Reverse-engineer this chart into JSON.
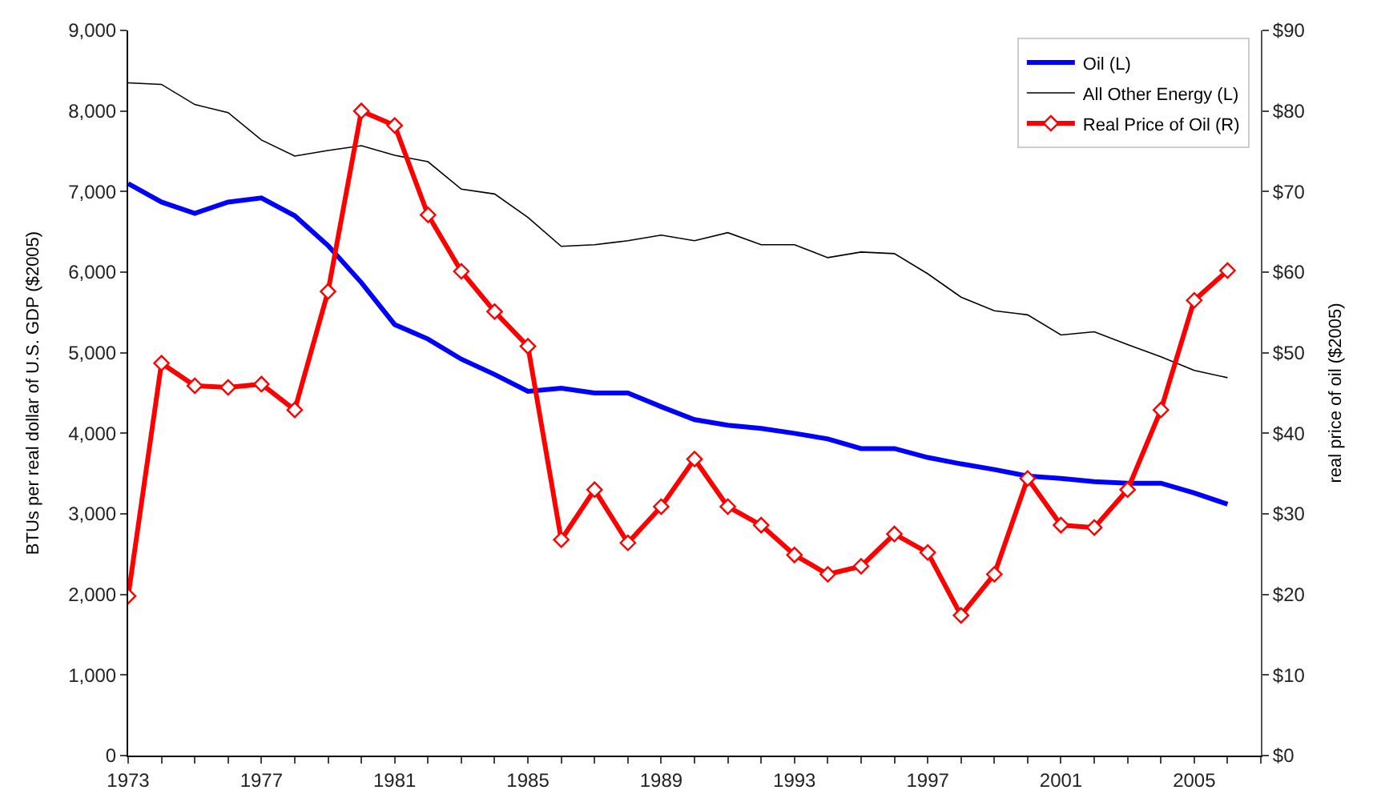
{
  "chart_data": {
    "type": "line",
    "x": [
      1973,
      1974,
      1975,
      1976,
      1977,
      1978,
      1979,
      1980,
      1981,
      1982,
      1983,
      1984,
      1985,
      1986,
      1987,
      1988,
      1989,
      1990,
      1991,
      1992,
      1993,
      1994,
      1995,
      1996,
      1997,
      1998,
      1999,
      2000,
      2001,
      2002,
      2003,
      2004,
      2005,
      2006
    ],
    "ylabel": "BTUs per real dollar of U.S. GDP ($2005)",
    "y2label": "real price of oil ($2005)",
    "xlim": [
      1973,
      2007
    ],
    "xticks": [
      1973,
      {
        "value": 1974,
        "label": null
      },
      {
        "value": 1975,
        "label": null
      },
      {
        "value": 1976,
        "label": null
      },
      1977,
      {
        "value": 1978,
        "label": null
      },
      {
        "value": 1979,
        "label": null
      },
      {
        "value": 1980,
        "label": null
      },
      1981,
      {
        "value": 1982,
        "label": null
      },
      {
        "value": 1983,
        "label": null
      },
      {
        "value": 1984,
        "label": null
      },
      1985,
      {
        "value": 1986,
        "label": null
      },
      {
        "value": 1987,
        "label": null
      },
      {
        "value": 1988,
        "label": null
      },
      1989,
      {
        "value": 1990,
        "label": null
      },
      {
        "value": 1991,
        "label": null
      },
      {
        "value": 1992,
        "label": null
      },
      1993,
      {
        "value": 1994,
        "label": null
      },
      {
        "value": 1995,
        "label": null
      },
      {
        "value": 1996,
        "label": null
      },
      1997,
      {
        "value": 1998,
        "label": null
      },
      {
        "value": 1999,
        "label": null
      },
      {
        "value": 2000,
        "label": null
      },
      2001,
      {
        "value": 2002,
        "label": null
      },
      {
        "value": 2003,
        "label": null
      },
      {
        "value": 2004,
        "label": null
      },
      2005,
      {
        "value": 2006,
        "label": null
      },
      {
        "value": 2007,
        "label": null
      }
    ],
    "ylim": [
      0,
      9000
    ],
    "yticks": [
      {
        "value": 0,
        "label": "0"
      },
      {
        "value": 1000,
        "label": "1,000"
      },
      {
        "value": 2000,
        "label": "2,000"
      },
      {
        "value": 3000,
        "label": "3,000"
      },
      {
        "value": 4000,
        "label": "4,000"
      },
      {
        "value": 5000,
        "label": "5,000"
      },
      {
        "value": 6000,
        "label": "6,000"
      },
      {
        "value": 7000,
        "label": "7,000"
      },
      {
        "value": 8000,
        "label": "8,000"
      },
      {
        "value": 9000,
        "label": "9,000"
      }
    ],
    "y2lim": [
      0,
      90
    ],
    "y2ticks": [
      {
        "value": 0,
        "label": "$0"
      },
      {
        "value": 10,
        "label": "$10"
      },
      {
        "value": 20,
        "label": "$20"
      },
      {
        "value": 30,
        "label": "$30"
      },
      {
        "value": 40,
        "label": "$40"
      },
      {
        "value": 50,
        "label": "$50"
      },
      {
        "value": 60,
        "label": "$60"
      },
      {
        "value": 70,
        "label": "$70"
      },
      {
        "value": 80,
        "label": "$80"
      },
      {
        "value": 90,
        "label": "$90"
      }
    ],
    "legend": "top right",
    "series": [
      {
        "name": "Oil (L)",
        "color": "#0000ff",
        "marker": "none",
        "values": [
          7100,
          6870,
          6730,
          6870,
          6920,
          6700,
          6330,
          5870,
          5350,
          5170,
          4920,
          4730,
          4520,
          4560,
          4500,
          4500,
          4330,
          4170,
          4100,
          4060,
          4000,
          3930,
          3810,
          3810,
          3700,
          3620,
          3550,
          3470,
          3440,
          3400,
          3380,
          3380,
          3260,
          3120
        ]
      },
      {
        "name": "All Other Energy (L)",
        "color": "#000000",
        "marker": "none",
        "values": [
          8350,
          8330,
          8080,
          7980,
          7640,
          7440,
          7510,
          7570,
          7450,
          7370,
          7030,
          6970,
          6680,
          6320,
          6340,
          6390,
          6460,
          6390,
          6490,
          6340,
          6340,
          6180,
          6250,
          6230,
          5980,
          5690,
          5520,
          5470,
          5220,
          5260,
          5100,
          4950,
          4780,
          4690
        ]
      },
      {
        "name": "Real Price of Oil (R)",
        "color": "#ff0000",
        "axis": "y2",
        "marker": "diamond",
        "values": [
          19.8,
          48.7,
          45.9,
          45.7,
          46.1,
          42.9,
          57.6,
          80.0,
          78.2,
          67.1,
          60.1,
          55.1,
          50.8,
          26.8,
          33.0,
          26.4,
          30.9,
          36.8,
          30.9,
          28.6,
          24.9,
          22.5,
          23.5,
          27.5,
          25.2,
          17.4,
          22.5,
          34.4,
          28.6,
          28.3,
          33.0,
          42.9,
          56.5,
          60.2
        ]
      }
    ]
  }
}
